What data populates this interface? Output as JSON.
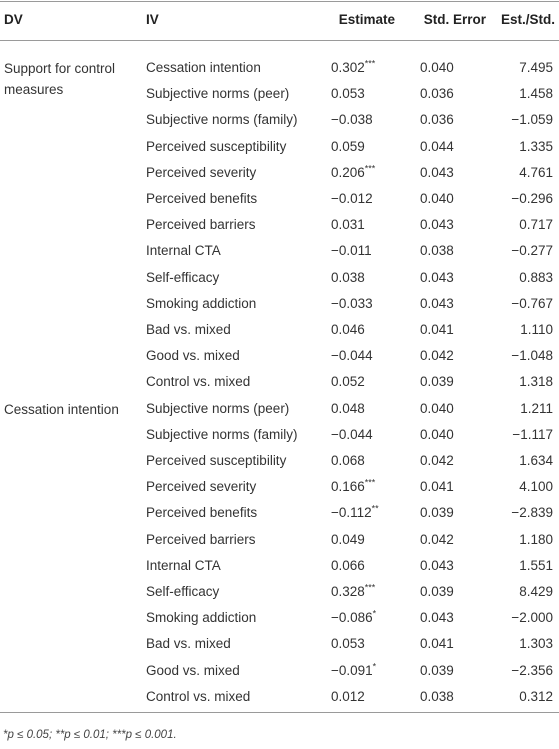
{
  "table": {
    "header": [
      "DV",
      "IV",
      "Estimate",
      "Std. Error",
      "Est./Std."
    ],
    "groups": [
      {
        "dv": "Support for control measures",
        "rows": [
          [
            "Cessation intention",
            "0.302***",
            "0.040",
            "7.495"
          ],
          [
            "Subjective norms (peer)",
            "0.053",
            "0.036",
            "1.458"
          ],
          [
            "Subjective norms (family)",
            "−0.038",
            "0.036",
            "−1.059"
          ],
          [
            "Perceived susceptibility",
            "0.059",
            "0.044",
            "1.335"
          ],
          [
            "Perceived severity",
            "0.206***",
            "0.043",
            "4.761"
          ],
          [
            "Perceived benefits",
            "−0.012",
            "0.040",
            "−0.296"
          ],
          [
            "Perceived barriers",
            "0.031",
            "0.043",
            "0.717"
          ],
          [
            "Internal CTA",
            "−0.011",
            "0.038",
            "−0.277"
          ],
          [
            "Self-efficacy",
            "0.038",
            "0.043",
            "0.883"
          ],
          [
            "Smoking addiction",
            "−0.033",
            "0.043",
            "−0.767"
          ],
          [
            "Bad vs. mixed",
            "0.046",
            "0.041",
            "1.110"
          ],
          [
            "Good vs. mixed",
            "−0.044",
            "0.042",
            "−1.048"
          ],
          [
            "Control vs. mixed",
            "0.052",
            "0.039",
            "1.318"
          ]
        ]
      },
      {
        "dv": "Cessation intention",
        "rows": [
          [
            "Subjective norms (peer)",
            "0.048",
            "0.040",
            "1.211"
          ],
          [
            "Subjective norms (family)",
            "−0.044",
            "0.040",
            "−1.117"
          ],
          [
            "Perceived susceptibility",
            "0.068",
            "0.042",
            "1.634"
          ],
          [
            "Perceived severity",
            "0.166***",
            "0.041",
            "4.100"
          ],
          [
            "Perceived benefits",
            "−0.112**",
            "0.039",
            "−2.839"
          ],
          [
            "Perceived barriers",
            "0.049",
            "0.042",
            "1.180"
          ],
          [
            "Internal CTA",
            "0.066",
            "0.043",
            "1.551"
          ],
          [
            "Self-efficacy",
            "0.328***",
            "0.039",
            "8.429"
          ],
          [
            "Smoking addiction",
            "−0.086*",
            "0.043",
            "−2.000"
          ],
          [
            "Bad vs. mixed",
            "0.053",
            "0.041",
            "1.303"
          ],
          [
            "Good vs. mixed",
            "−0.091*",
            "0.039",
            "−2.356"
          ],
          [
            "Control vs. mixed",
            "0.012",
            "0.038",
            "0.312"
          ]
        ]
      }
    ],
    "footnote": "*p ≤ 0.05; **p ≤ 0.01; ***p ≤ 0.001."
  }
}
